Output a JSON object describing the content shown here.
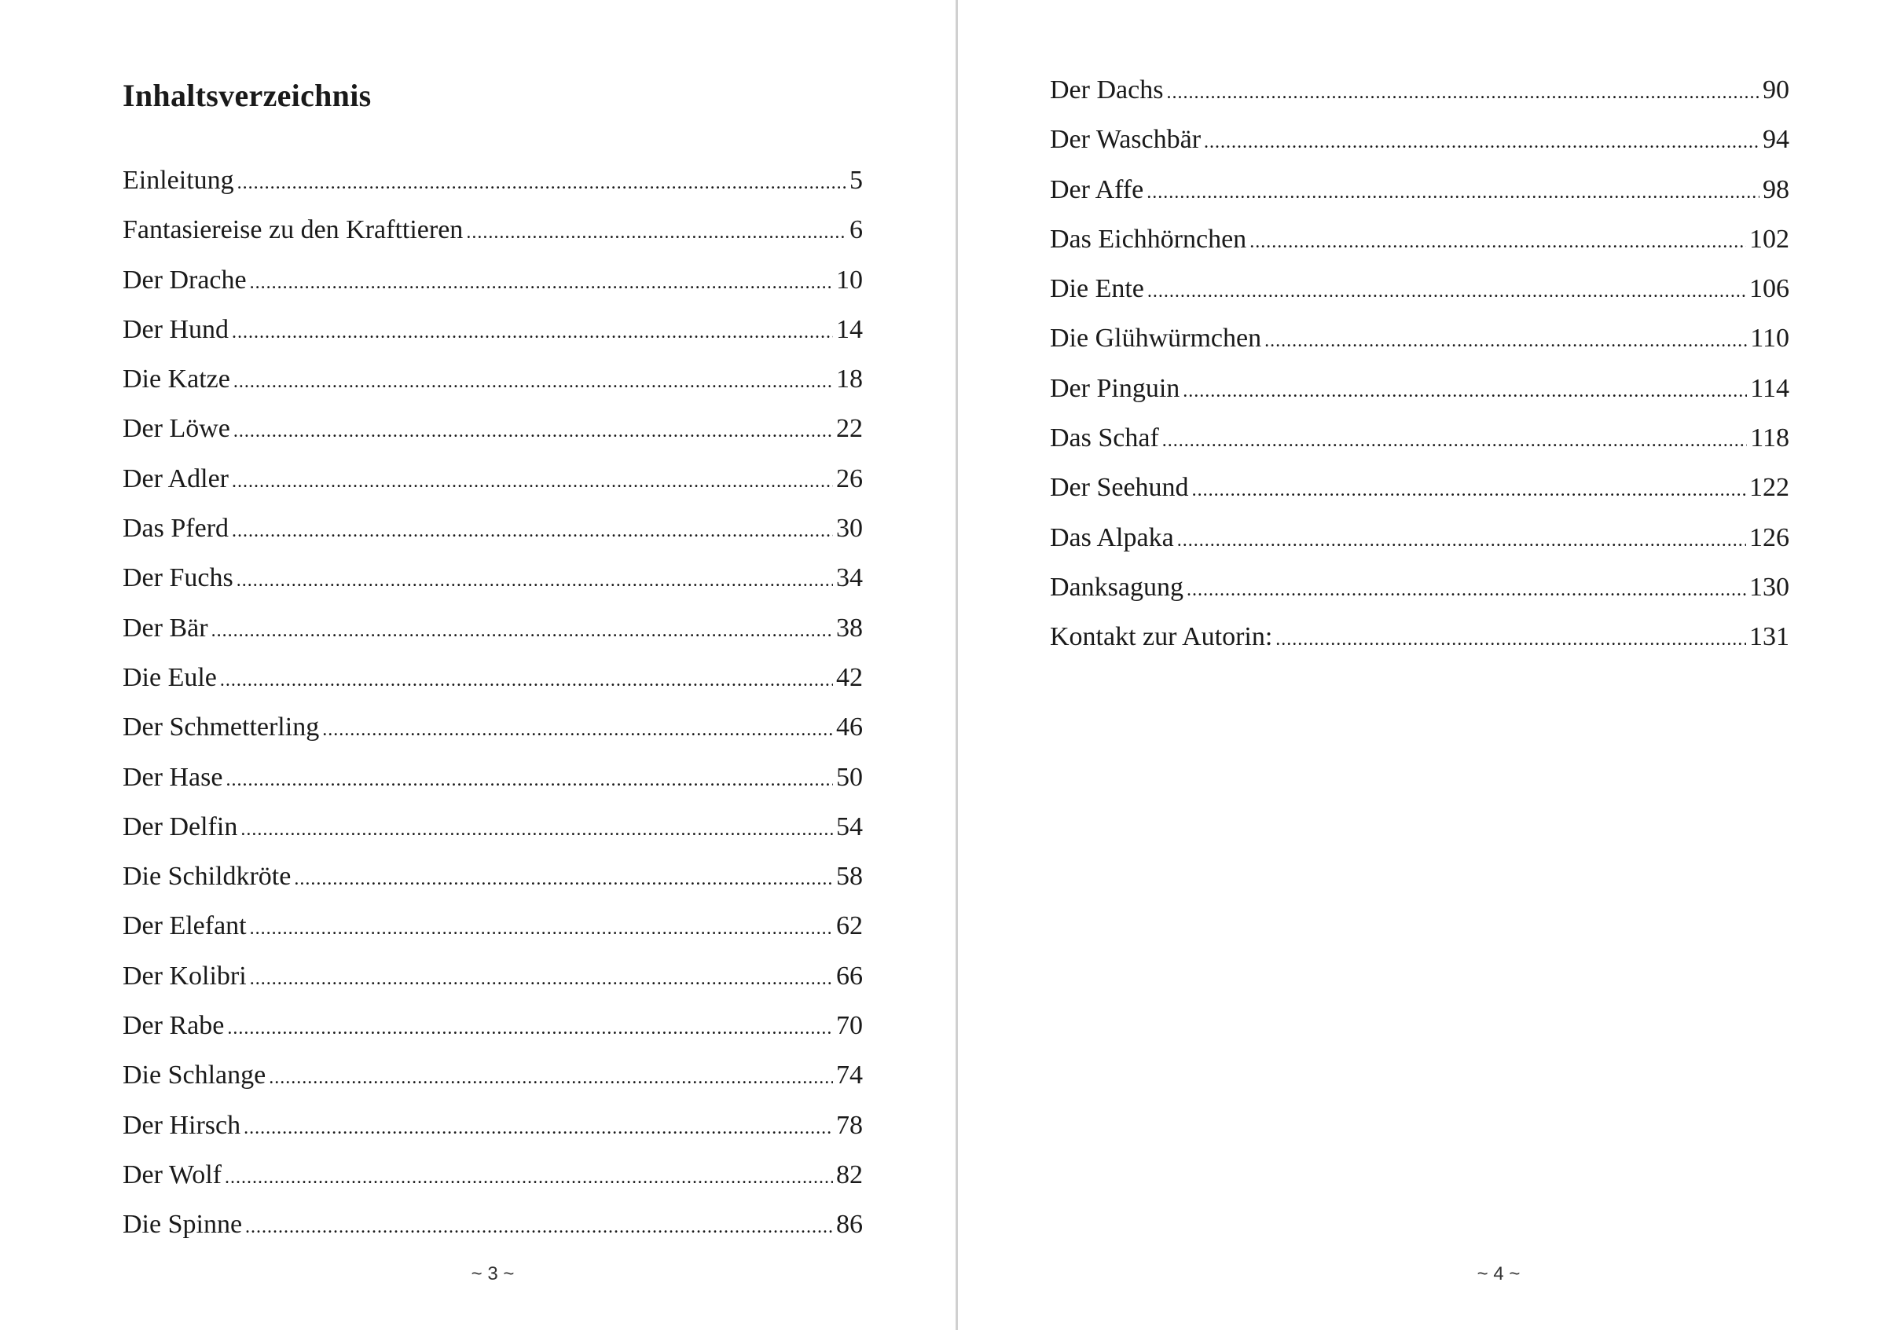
{
  "left_page": {
    "title": "Inhaltsverzeichnis",
    "entries": [
      {
        "label": "Einleitung",
        "page": "5"
      },
      {
        "label": "Fantasiereise zu den Krafttieren",
        "page": "6"
      },
      {
        "label": "Der Drache",
        "page": "10"
      },
      {
        "label": "Der Hund",
        "page": "14"
      },
      {
        "label": "Die Katze",
        "page": "18"
      },
      {
        "label": "Der Löwe",
        "page": "22"
      },
      {
        "label": "Der Adler",
        "page": "26"
      },
      {
        "label": "Das Pferd",
        "page": "30"
      },
      {
        "label": "Der Fuchs",
        "page": "34"
      },
      {
        "label": "Der Bär",
        "page": "38"
      },
      {
        "label": "Die Eule",
        "page": "42"
      },
      {
        "label": "Der Schmetterling",
        "page": "46"
      },
      {
        "label": "Der Hase",
        "page": "50"
      },
      {
        "label": "Der Delfin",
        "page": "54"
      },
      {
        "label": "Die Schildkröte",
        "page": "58"
      },
      {
        "label": "Der Elefant",
        "page": "62"
      },
      {
        "label": "Der Kolibri",
        "page": "66"
      },
      {
        "label": "Der Rabe",
        "page": "70"
      },
      {
        "label": "Die Schlange",
        "page": "74"
      },
      {
        "label": "Der Hirsch",
        "page": "78"
      },
      {
        "label": "Der Wolf",
        "page": "82"
      },
      {
        "label": "Die Spinne",
        "page": "86"
      }
    ],
    "page_number": "~ 3 ~"
  },
  "right_page": {
    "entries": [
      {
        "label": "Der Dachs",
        "page": "90"
      },
      {
        "label": "Der Waschbär",
        "page": "94"
      },
      {
        "label": "Der Affe",
        "page": "98"
      },
      {
        "label": "Das Eichhörnchen",
        "page": "102"
      },
      {
        "label": "Die Ente",
        "page": "106"
      },
      {
        "label": "Die Glühwürmchen",
        "page": "110"
      },
      {
        "label": "Der Pinguin",
        "page": "114"
      },
      {
        "label": "Das Schaf",
        "page": "118"
      },
      {
        "label": "Der Seehund",
        "page": "122"
      },
      {
        "label": "Das Alpaka",
        "page": "126"
      },
      {
        "label": "Danksagung",
        "page": "130"
      },
      {
        "label": "Kontakt zur Autorin:",
        "page": "131"
      }
    ],
    "page_number": "~ 4 ~"
  }
}
